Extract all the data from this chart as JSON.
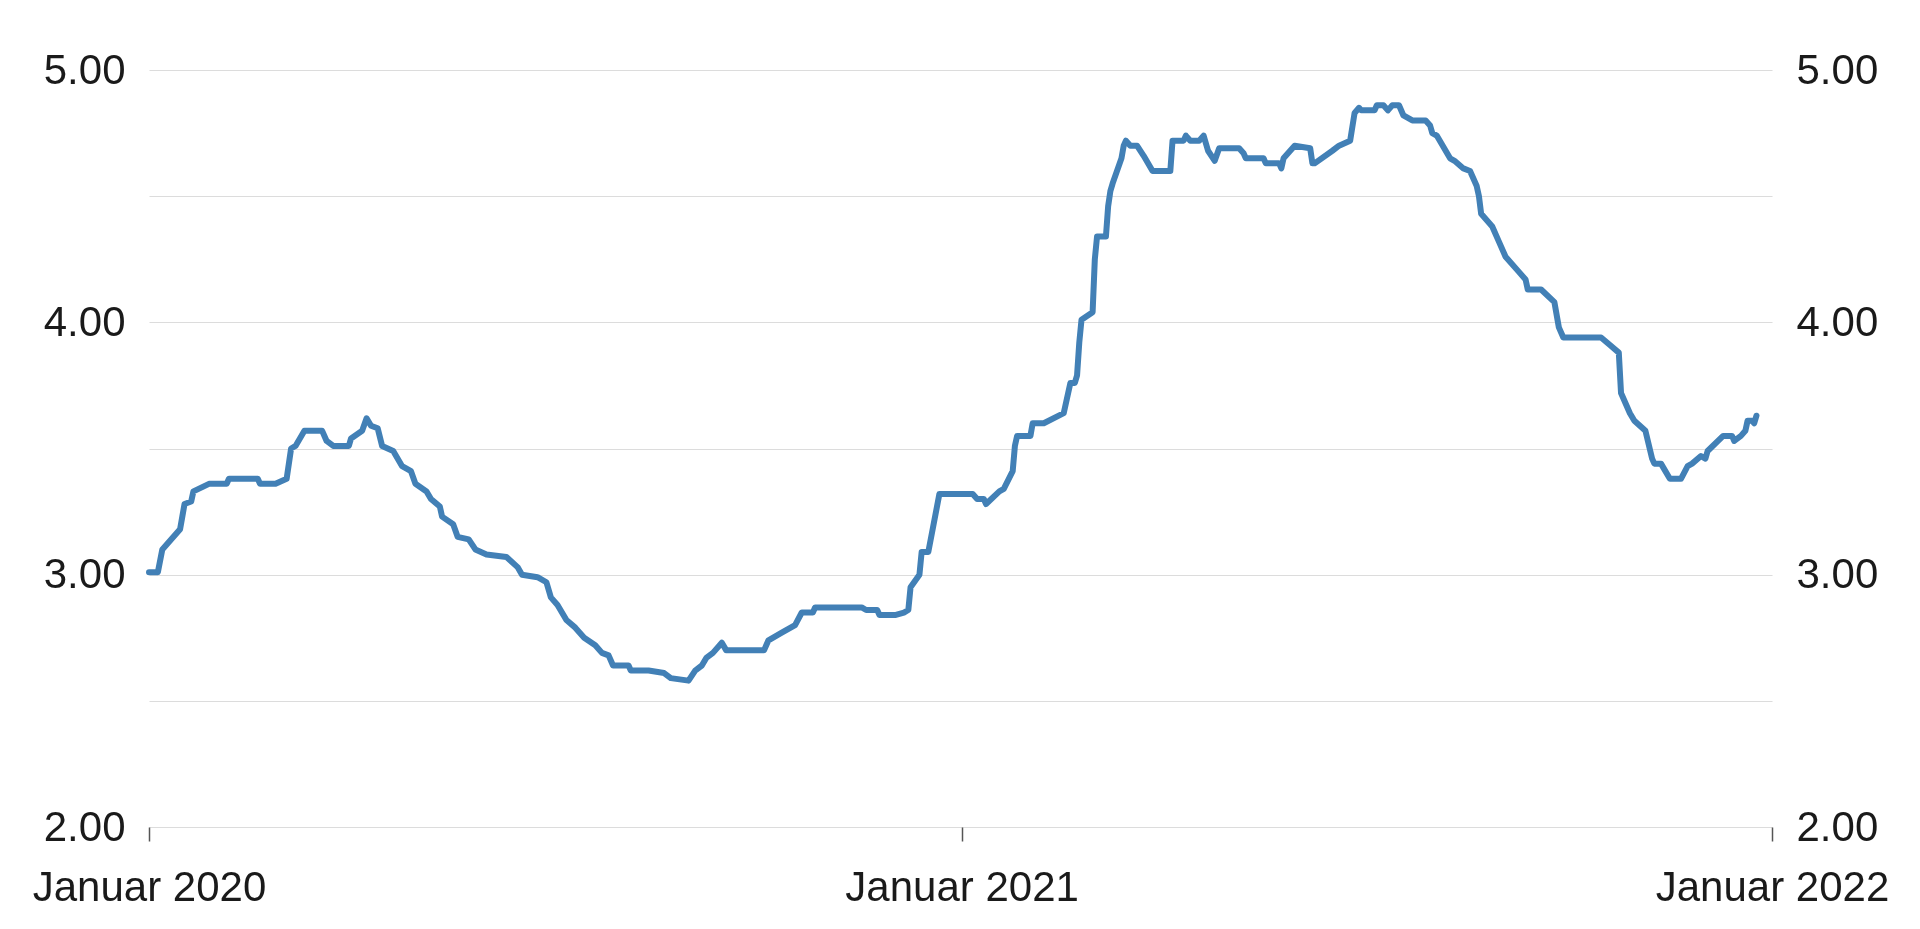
{
  "chart_data": {
    "type": "line",
    "x": [
      "2020-01-01",
      "2020-01-05",
      "2020-01-07",
      "2020-01-15",
      "2020-01-16",
      "2020-01-17",
      "2020-01-20",
      "2020-01-21",
      "2020-01-28",
      "2020-02-05",
      "2020-02-06",
      "2020-02-19",
      "2020-02-20",
      "2020-02-27",
      "2020-03-03",
      "2020-03-05",
      "2020-03-07",
      "2020-03-11",
      "2020-03-19",
      "2020-03-21",
      "2020-03-24",
      "2020-03-31",
      "2020-04-01",
      "2020-04-06",
      "2020-04-08",
      "2020-04-10",
      "2020-04-13",
      "2020-04-15",
      "2020-04-20",
      "2020-04-24",
      "2020-04-28",
      "2020-04-30",
      "2020-05-05",
      "2020-05-07",
      "2020-05-11",
      "2020-05-12",
      "2020-05-17",
      "2020-05-19",
      "2020-05-24",
      "2020-05-27",
      "2020-06-01",
      "2020-06-10",
      "2020-06-15",
      "2020-06-17",
      "2020-06-24",
      "2020-06-28",
      "2020-06-30",
      "2020-07-03",
      "2020-07-07",
      "2020-07-11",
      "2020-07-15",
      "2020-07-20",
      "2020-07-23",
      "2020-07-26",
      "2020-07-28",
      "2020-08-04",
      "2020-08-05",
      "2020-08-13",
      "2020-08-20",
      "2020-08-23",
      "2020-08-31",
      "2020-09-03",
      "2020-09-06",
      "2020-09-08",
      "2020-09-11",
      "2020-09-15",
      "2020-09-17",
      "2020-10-04",
      "2020-10-06",
      "2020-10-12",
      "2020-10-18",
      "2020-10-21",
      "2020-10-26",
      "2020-10-27",
      "2020-11-17",
      "2020-11-19",
      "2020-11-24",
      "2020-11-25",
      "2020-12-02",
      "2020-12-06",
      "2020-12-08",
      "2020-12-09",
      "2020-12-13",
      "2020-12-14",
      "2020-12-17",
      "2020-12-22",
      "2021-01-06",
      "2021-01-08",
      "2021-01-11",
      "2021-01-12",
      "2021-01-18",
      "2021-01-20",
      "2021-01-24",
      "2021-01-25",
      "2021-01-26",
      "2021-02-01",
      "2021-02-02",
      "2021-02-07",
      "2021-02-16",
      "2021-02-19",
      "2021-02-21",
      "2021-02-22",
      "2021-02-23",
      "2021-02-24",
      "2021-03-01",
      "2021-03-02",
      "2021-03-03",
      "2021-03-07",
      "2021-03-08",
      "2021-03-09",
      "2021-03-10",
      "2021-03-14",
      "2021-03-15",
      "2021-03-16",
      "2021-03-18",
      "2021-03-21",
      "2021-03-24",
      "2021-03-28",
      "2021-04-05",
      "2021-04-06",
      "2021-04-11",
      "2021-04-12",
      "2021-04-14",
      "2021-04-18",
      "2021-04-20",
      "2021-04-22",
      "2021-04-25",
      "2021-04-27",
      "2021-05-06",
      "2021-05-08",
      "2021-05-09",
      "2021-05-17",
      "2021-05-18",
      "2021-05-24",
      "2021-05-25",
      "2021-05-26",
      "2021-05-31",
      "2021-06-07",
      "2021-06-08",
      "2021-06-09",
      "2021-06-17",
      "2021-06-20",
      "2021-06-25",
      "2021-06-27",
      "2021-06-29",
      "2021-06-30",
      "2021-07-06",
      "2021-07-07",
      "2021-07-10",
      "2021-07-12",
      "2021-07-14",
      "2021-07-17",
      "2021-07-19",
      "2021-07-23",
      "2021-07-29",
      "2021-07-31",
      "2021-08-01",
      "2021-08-03",
      "2021-08-09",
      "2021-08-11",
      "2021-08-15",
      "2021-08-18",
      "2021-08-21",
      "2021-08-22",
      "2021-08-23",
      "2021-08-28",
      "2021-08-31",
      "2021-09-03",
      "2021-09-09",
      "2021-09-12",
      "2021-09-13",
      "2021-09-19",
      "2021-09-25",
      "2021-09-27",
      "2021-09-29",
      "2021-10-16",
      "2021-10-20",
      "2021-10-24",
      "2021-10-25",
      "2021-10-29",
      "2021-10-31",
      "2021-11-05",
      "2021-11-08",
      "2021-11-09",
      "2021-11-12",
      "2021-11-16",
      "2021-11-21",
      "2021-11-24",
      "2021-11-26",
      "2021-11-30",
      "2021-12-02",
      "2021-12-03",
      "2021-12-10",
      "2021-12-14",
      "2021-12-15",
      "2021-12-18",
      "2021-12-20",
      "2021-12-21",
      "2021-12-23",
      "2021-12-24",
      "2021-12-25"
    ],
    "series": [
      {
        "color": "#4280b6",
        "values": [
          3.01,
          3.01,
          3.1,
          3.18,
          3.23,
          3.28,
          3.29,
          3.33,
          3.36,
          3.36,
          3.38,
          3.38,
          3.36,
          3.36,
          3.38,
          3.5,
          3.51,
          3.57,
          3.57,
          3.53,
          3.51,
          3.51,
          3.54,
          3.57,
          3.62,
          3.59,
          3.58,
          3.51,
          3.49,
          3.43,
          3.41,
          3.36,
          3.33,
          3.3,
          3.27,
          3.23,
          3.2,
          3.15,
          3.14,
          3.1,
          3.08,
          3.07,
          3.03,
          3.0,
          2.99,
          2.97,
          2.91,
          2.88,
          2.82,
          2.79,
          2.75,
          2.72,
          2.69,
          2.68,
          2.64,
          2.64,
          2.62,
          2.62,
          2.61,
          2.59,
          2.58,
          2.62,
          2.64,
          2.67,
          2.69,
          2.73,
          2.7,
          2.7,
          2.74,
          2.77,
          2.8,
          2.85,
          2.85,
          2.87,
          2.87,
          2.86,
          2.86,
          2.84,
          2.84,
          2.85,
          2.86,
          2.95,
          3.0,
          3.09,
          3.09,
          3.32,
          3.32,
          3.3,
          3.3,
          3.28,
          3.33,
          3.34,
          3.41,
          3.51,
          3.55,
          3.55,
          3.6,
          3.6,
          3.64,
          3.76,
          3.76,
          3.79,
          3.92,
          4.01,
          4.04,
          4.25,
          4.34,
          4.34,
          4.46,
          4.52,
          4.55,
          4.65,
          4.7,
          4.72,
          4.7,
          4.7,
          4.66,
          4.6,
          4.6,
          4.72,
          4.72,
          4.74,
          4.72,
          4.72,
          4.74,
          4.68,
          4.64,
          4.69,
          4.69,
          4.67,
          4.65,
          4.65,
          4.63,
          4.63,
          4.61,
          4.65,
          4.7,
          4.69,
          4.63,
          4.63,
          4.68,
          4.7,
          4.72,
          4.83,
          4.85,
          4.84,
          4.84,
          4.86,
          4.86,
          4.84,
          4.86,
          4.86,
          4.82,
          4.8,
          4.8,
          4.78,
          4.75,
          4.74,
          4.65,
          4.64,
          4.61,
          4.6,
          4.54,
          4.5,
          4.43,
          4.38,
          4.32,
          4.26,
          4.2,
          4.17,
          4.13,
          4.13,
          4.08,
          3.98,
          3.94,
          3.94,
          3.91,
          3.88,
          3.72,
          3.64,
          3.61,
          3.57,
          3.46,
          3.44,
          3.44,
          3.38,
          3.38,
          3.43,
          3.44,
          3.47,
          3.46,
          3.49,
          3.55,
          3.55,
          3.53,
          3.55,
          3.57,
          3.61,
          3.61,
          3.6,
          3.63
        ]
      }
    ],
    "xlim": [
      "2020-01-01",
      "2022-01-01"
    ],
    "xticks": [
      {
        "value": "2020-01-01",
        "label": "Januar 2020"
      },
      {
        "value": "2021-01-01",
        "label": "Januar 2021"
      },
      {
        "value": "2022-01-01",
        "label": "Januar 2022"
      }
    ],
    "ylim": [
      2,
      5
    ],
    "yticks": [
      {
        "value": 2,
        "label": "2.00"
      },
      {
        "value": 2.5,
        "label": null
      },
      {
        "value": 3,
        "label": "3.00"
      },
      {
        "value": 3.5,
        "label": null
      },
      {
        "value": 4,
        "label": "4.00"
      },
      {
        "value": 4.5,
        "label": null
      },
      {
        "value": 5,
        "label": "5.00"
      }
    ],
    "y2lim": [
      2,
      5
    ],
    "y2ticks": [
      {
        "value": 2,
        "label": "2.00"
      },
      {
        "value": 2.5,
        "label": null
      },
      {
        "value": 3,
        "label": "3.00"
      },
      {
        "value": 3.5,
        "label": null
      },
      {
        "value": 4,
        "label": "4.00"
      },
      {
        "value": 4.5,
        "label": null
      },
      {
        "value": 5,
        "label": "5.00"
      }
    ],
    "grid": "y"
  }
}
